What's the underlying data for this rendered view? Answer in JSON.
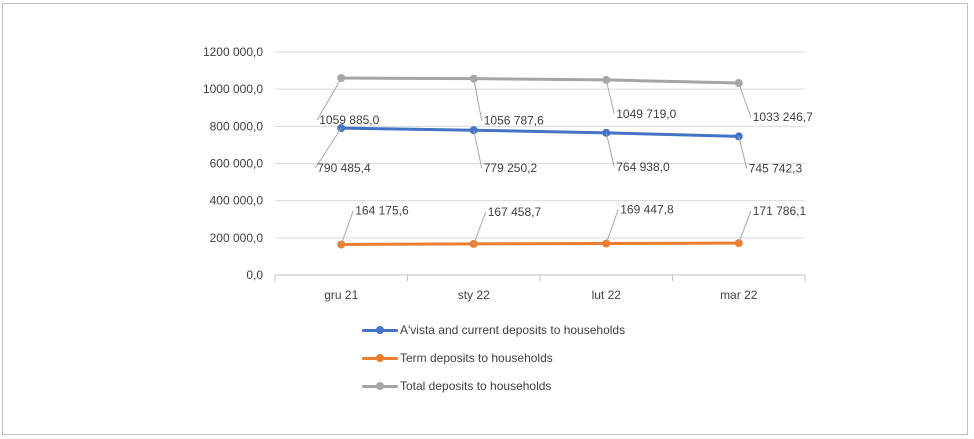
{
  "chart_data": {
    "type": "line",
    "categories": [
      "gru 21",
      "sty 22",
      "lut 22",
      "mar 22"
    ],
    "y_ticks": [
      "0,0",
      "200 000,0",
      "400 000,0",
      "600 000,0",
      "800 000,0",
      "1000 000,0",
      "1200 000,0"
    ],
    "ylim": [
      0,
      1200000
    ],
    "grid": true,
    "legend_position": "bottom",
    "series": [
      {
        "name": "A'vista and current deposits to households",
        "color": "#4472c4",
        "values": [
          790485.4,
          779250.2,
          764938.0,
          745742.3
        ],
        "labels": [
          "790 485,4",
          "779 250,2",
          "764 938,0",
          "745 742,3"
        ]
      },
      {
        "name": "Term deposits to households",
        "color": "#ed7d31",
        "values": [
          164175.6,
          167458.7,
          169447.8,
          171786.1
        ],
        "labels": [
          "164 175,6",
          "167 458,7",
          "169 447,8",
          "171 786,1"
        ]
      },
      {
        "name": "Total deposits to households",
        "color": "#a5a5a5",
        "values": [
          1059885.0,
          1056787.6,
          1049719.0,
          1033246.7
        ],
        "labels": [
          "1059 885,0",
          "1056 787,6",
          "1049 719,0",
          "1033 246,7"
        ]
      }
    ]
  }
}
